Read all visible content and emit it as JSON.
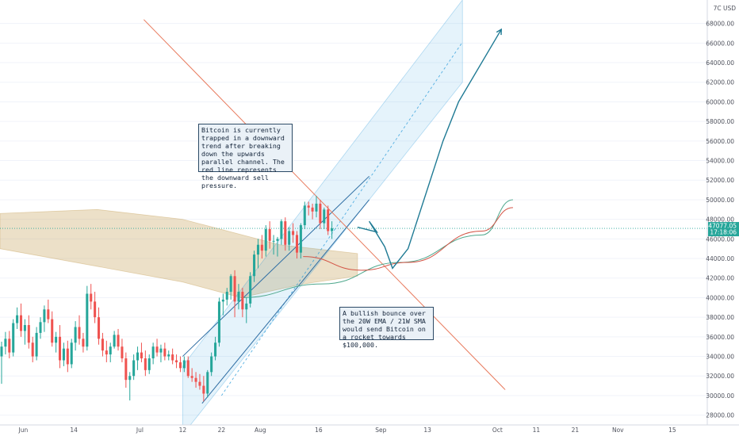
{
  "chart_data": {
    "type": "candlestick",
    "y_axis": {
      "unit": "USD",
      "ticks": [
        28000,
        30000,
        32000,
        34000,
        36000,
        38000,
        40000,
        42000,
        44000,
        46000,
        48000,
        50000,
        52000,
        54000,
        56000,
        58000,
        60000,
        62000,
        64000,
        66000,
        68000
      ],
      "tick_labels": [
        "28000.00",
        "30000.00",
        "32000.00",
        "34000.00",
        "36000.00",
        "38000.00",
        "40000.00",
        "42000.00",
        "44000.00",
        "46000.00",
        "48000.00",
        "50000.00",
        "52000.00",
        "54000.00",
        "56000.00",
        "58000.00",
        "60000.00",
        "62000.00",
        "64000.00",
        "66000.00",
        "68000.00"
      ],
      "range": [
        27000,
        70400
      ],
      "position": "right"
    },
    "x_axis": {
      "ticks": [
        "Jun",
        "14",
        "Jul",
        "12",
        "22",
        "Aug",
        "16",
        "Sep",
        "13",
        "Oct",
        "11",
        "21",
        "Nov",
        "15"
      ],
      "range": [
        "2021-05-26",
        "2021-11-24"
      ]
    },
    "last_price": {
      "value": "47077.05",
      "countdown": "17:18:06"
    },
    "currency_label": "7C USD",
    "annotations": [
      {
        "text": "Bitcoin is currently trapped in a downward trend after breaking down the upwards parallel channel.  The red line represents the downward sell pressure."
      },
      {
        "text": "A bullish bounce over the 20W EMA / 21W SMA would send Bitcoin on a rocket towards $100,000."
      }
    ],
    "candles": [
      [
        34000,
        35500,
        31200,
        35000
      ],
      [
        35000,
        36500,
        34200,
        35800
      ],
      [
        35800,
        36600,
        33800,
        34400
      ],
      [
        34400,
        37800,
        34000,
        37400
      ],
      [
        37400,
        39000,
        36800,
        38200
      ],
      [
        38200,
        39400,
        36000,
        36600
      ],
      [
        36600,
        37800,
        35200,
        37200
      ],
      [
        37200,
        38200,
        34800,
        35400
      ],
      [
        35400,
        36000,
        33400,
        34000
      ],
      [
        34000,
        37000,
        33600,
        36400
      ],
      [
        36400,
        38000,
        35800,
        37500
      ],
      [
        37500,
        39200,
        36500,
        38800
      ],
      [
        38800,
        39800,
        37400,
        37800
      ],
      [
        37800,
        38600,
        35000,
        35400
      ],
      [
        35400,
        36500,
        34400,
        36000
      ],
      [
        36000,
        37200,
        32800,
        33600
      ],
      [
        33600,
        35400,
        33000,
        34800
      ],
      [
        34800,
        35600,
        32400,
        33200
      ],
      [
        33200,
        35800,
        32800,
        35400
      ],
      [
        35400,
        37600,
        34600,
        37000
      ],
      [
        37000,
        38200,
        35200,
        35800
      ],
      [
        35800,
        36400,
        34400,
        35000
      ],
      [
        35000,
        41200,
        34600,
        40400
      ],
      [
        40400,
        41400,
        38800,
        39600
      ],
      [
        39600,
        40600,
        37400,
        38000
      ],
      [
        38000,
        39000,
        35200,
        35800
      ],
      [
        35800,
        36400,
        34000,
        34600
      ],
      [
        34600,
        35600,
        33400,
        34200
      ],
      [
        34200,
        35400,
        33400,
        35000
      ],
      [
        35000,
        36600,
        34800,
        36200
      ],
      [
        36200,
        36800,
        34600,
        35000
      ],
      [
        35000,
        35800,
        33400,
        33800
      ],
      [
        33800,
        34400,
        30800,
        31600
      ],
      [
        31600,
        32400,
        29500,
        32000
      ],
      [
        32000,
        34200,
        31600,
        33600
      ],
      [
        33600,
        35000,
        32600,
        34400
      ],
      [
        34400,
        35400,
        33400,
        33800
      ],
      [
        33800,
        34600,
        32000,
        32600
      ],
      [
        32600,
        34200,
        32200,
        33800
      ],
      [
        33800,
        35400,
        33200,
        35000
      ],
      [
        35000,
        35800,
        34000,
        34400
      ],
      [
        34400,
        35200,
        33400,
        34800
      ],
      [
        34800,
        35400,
        33600,
        34000
      ],
      [
        34000,
        34600,
        33600,
        34200
      ],
      [
        34200,
        34800,
        33200,
        33600
      ],
      [
        33600,
        34200,
        32800,
        33400
      ],
      [
        33400,
        34000,
        32400,
        32800
      ],
      [
        32800,
        34000,
        32400,
        33600
      ],
      [
        33600,
        34000,
        31800,
        32000
      ],
      [
        32000,
        32800,
        31400,
        31800
      ],
      [
        31800,
        32400,
        30800,
        31400
      ],
      [
        31400,
        32200,
        30600,
        31000
      ],
      [
        31000,
        32000,
        29400,
        30200
      ],
      [
        30200,
        32600,
        29800,
        32400
      ],
      [
        32400,
        34400,
        32000,
        34000
      ],
      [
        34000,
        36000,
        33600,
        35400
      ],
      [
        35400,
        40000,
        35000,
        39600
      ],
      [
        39600,
        40400,
        38200,
        39800
      ],
      [
        39800,
        41000,
        39200,
        40600
      ],
      [
        40600,
        42400,
        39800,
        42200
      ],
      [
        42200,
        42800,
        38000,
        39600
      ],
      [
        39600,
        41400,
        38800,
        40600
      ],
      [
        40600,
        41000,
        38000,
        38800
      ],
      [
        38800,
        40000,
        37400,
        39400
      ],
      [
        39400,
        42600,
        39000,
        42200
      ],
      [
        42200,
        44800,
        41600,
        44400
      ],
      [
        44400,
        46000,
        43000,
        45400
      ],
      [
        45400,
        46400,
        44000,
        44800
      ],
      [
        44800,
        47400,
        44200,
        47000
      ],
      [
        47000,
        47800,
        45000,
        45800
      ],
      [
        45800,
        46400,
        44400,
        45800
      ],
      [
        45800,
        46200,
        44200,
        46000
      ],
      [
        46000,
        48000,
        45400,
        47800
      ],
      [
        47800,
        48200,
        44800,
        45400
      ],
      [
        45400,
        47200,
        44800,
        46800
      ],
      [
        46800,
        47600,
        45600,
        46400
      ],
      [
        46400,
        46800,
        44000,
        44600
      ],
      [
        44600,
        47600,
        44000,
        47400
      ],
      [
        47400,
        49800,
        47000,
        49400
      ],
      [
        49400,
        49800,
        48400,
        49200
      ],
      [
        49200,
        49600,
        48000,
        48800
      ],
      [
        48800,
        50400,
        48200,
        49600
      ],
      [
        49600,
        50000,
        47000,
        47600
      ],
      [
        47600,
        49200,
        47000,
        49000
      ],
      [
        49000,
        49400,
        46400,
        46800
      ],
      [
        46800,
        47800,
        46000,
        47077
      ]
    ],
    "overlays": {
      "channel_upper": [
        {
          "date": "2021-07-12",
          "price": 33000
        },
        {
          "date": "2021-09-22",
          "price": 70400
        }
      ],
      "channel_mid": [
        {
          "date": "2021-07-22",
          "price": 30000
        },
        {
          "date": "2021-09-22",
          "price": 66100
        }
      ],
      "channel_lower": [
        {
          "date": "2021-07-12",
          "price": 26000
        },
        {
          "date": "2021-09-22",
          "price": 62000
        }
      ],
      "channel_upper_solid": [
        {
          "date": "2021-07-12",
          "price": 34000
        },
        {
          "date": "2021-08-29",
          "price": 52400
        }
      ],
      "channel_lower_solid": [
        {
          "date": "2021-07-17",
          "price": 29200
        },
        {
          "date": "2021-08-29",
          "price": 50000
        }
      ],
      "sell_pressure_line": [
        {
          "date": "2021-07-02",
          "price": 68400
        },
        {
          "date": "2021-10-03",
          "price": 30600
        }
      ],
      "projection_path": [
        {
          "date": "2021-08-26",
          "price": 47200
        },
        {
          "date": "2021-08-31",
          "price": 46700
        },
        {
          "date": "2021-08-29",
          "price": 47800
        },
        {
          "date": "2021-09-02",
          "price": 45200
        },
        {
          "date": "2021-09-04",
          "price": 43000
        },
        {
          "date": "2021-09-08",
          "price": 45000
        },
        {
          "date": "2021-09-17",
          "price": 56000
        },
        {
          "date": "2021-09-21",
          "price": 60000
        },
        {
          "date": "2021-10-02",
          "price": 67400
        }
      ],
      "ema_20w": [
        {
          "date": "2021-07-27",
          "price": 40000
        },
        {
          "date": "2021-08-17",
          "price": 41400
        },
        {
          "date": "2021-09-06",
          "price": 43600
        },
        {
          "date": "2021-09-27",
          "price": 46400
        },
        {
          "date": "2021-10-05",
          "price": 50000
        }
      ],
      "sma_21w": [
        {
          "date": "2021-08-12",
          "price": 44200
        },
        {
          "date": "2021-08-27",
          "price": 42800
        },
        {
          "date": "2021-09-08",
          "price": 43600
        },
        {
          "date": "2021-09-27",
          "price": 46800
        },
        {
          "date": "2021-10-05",
          "price": 49200
        }
      ],
      "cloud_upper": [
        {
          "date": "2021-05-26",
          "price": 48600
        },
        {
          "date": "2021-06-20",
          "price": 49000
        },
        {
          "date": "2021-07-12",
          "price": 48000
        },
        {
          "date": "2021-08-06",
          "price": 45400
        },
        {
          "date": "2021-08-26",
          "price": 44500
        }
      ],
      "cloud_lower": [
        {
          "date": "2021-05-26",
          "price": 45000
        },
        {
          "date": "2021-06-20",
          "price": 43200
        },
        {
          "date": "2021-07-12",
          "price": 41600
        },
        {
          "date": "2021-07-27",
          "price": 40000
        },
        {
          "date": "2021-08-12",
          "price": 41400
        },
        {
          "date": "2021-08-26",
          "price": 42200
        }
      ]
    },
    "colors": {
      "up": "#26a69a",
      "down": "#ef5350",
      "channel": "#2d6da3",
      "channel_fill": "#2d9cdb",
      "sell_line": "#e87a5d",
      "projection": "#1f7a94",
      "sma": "#d35445",
      "ema": "#4fa88d",
      "cloud": "#c8a560"
    },
    "grid": true,
    "legend": "none"
  }
}
